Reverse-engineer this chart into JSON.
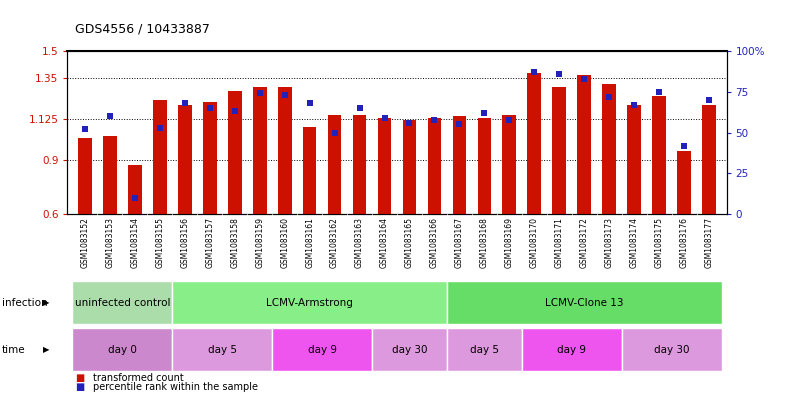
{
  "title": "GDS4556 / 10433887",
  "samples": [
    "GSM1083152",
    "GSM1083153",
    "GSM1083154",
    "GSM1083155",
    "GSM1083156",
    "GSM1083157",
    "GSM1083158",
    "GSM1083159",
    "GSM1083160",
    "GSM1083161",
    "GSM1083162",
    "GSM1083163",
    "GSM1083164",
    "GSM1083165",
    "GSM1083166",
    "GSM1083167",
    "GSM1083168",
    "GSM1083169",
    "GSM1083170",
    "GSM1083171",
    "GSM1083172",
    "GSM1083173",
    "GSM1083174",
    "GSM1083175",
    "GSM1083176",
    "GSM1083177"
  ],
  "bar_values": [
    1.02,
    1.03,
    0.87,
    1.23,
    1.2,
    1.22,
    1.28,
    1.3,
    1.3,
    1.08,
    1.15,
    1.15,
    1.13,
    1.12,
    1.13,
    1.14,
    1.13,
    1.15,
    1.38,
    1.3,
    1.37,
    1.32,
    1.2,
    1.25,
    0.95,
    1.2
  ],
  "percentile_values": [
    52,
    60,
    10,
    53,
    68,
    65,
    63,
    74,
    73,
    68,
    50,
    65,
    59,
    56,
    58,
    55,
    62,
    58,
    87,
    86,
    83,
    72,
    67,
    75,
    42,
    70
  ],
  "bar_color": "#CC1100",
  "percentile_color": "#2222BB",
  "ylim_left": [
    0.6,
    1.5
  ],
  "ylim_right": [
    0,
    100
  ],
  "yticks_left": [
    0.6,
    0.9,
    1.125,
    1.35,
    1.5
  ],
  "ytick_labels_left": [
    "0.6",
    "0.9",
    "1.125",
    "1.35",
    "1.5"
  ],
  "yticks_right": [
    0,
    25,
    50,
    75,
    100
  ],
  "ytick_labels_right": [
    "0",
    "25",
    "50",
    "75",
    "100%"
  ],
  "hlines": [
    0.9,
    1.125,
    1.35
  ],
  "infection_groups": [
    {
      "label": "uninfected control",
      "start": 0,
      "end": 4,
      "color": "#aaddaa"
    },
    {
      "label": "LCMV-Armstrong",
      "start": 4,
      "end": 15,
      "color": "#88ee88"
    },
    {
      "label": "LCMV-Clone 13",
      "start": 15,
      "end": 26,
      "color": "#66dd66"
    }
  ],
  "time_groups": [
    {
      "label": "day 0",
      "start": 0,
      "end": 4,
      "color": "#cc88cc"
    },
    {
      "label": "day 5",
      "start": 4,
      "end": 8,
      "color": "#dd99dd"
    },
    {
      "label": "day 9",
      "start": 8,
      "end": 12,
      "color": "#ee55ee"
    },
    {
      "label": "day 30",
      "start": 12,
      "end": 15,
      "color": "#dd99dd"
    },
    {
      "label": "day 5",
      "start": 15,
      "end": 18,
      "color": "#dd99dd"
    },
    {
      "label": "day 9",
      "start": 18,
      "end": 22,
      "color": "#ee55ee"
    },
    {
      "label": "day 30",
      "start": 22,
      "end": 26,
      "color": "#dd99dd"
    }
  ],
  "legend_items": [
    {
      "label": "transformed count",
      "color": "#CC1100"
    },
    {
      "label": "percentile rank within the sample",
      "color": "#2222BB"
    }
  ],
  "xtick_bg_color": "#cccccc",
  "infection_label": "infection",
  "time_label": "time"
}
